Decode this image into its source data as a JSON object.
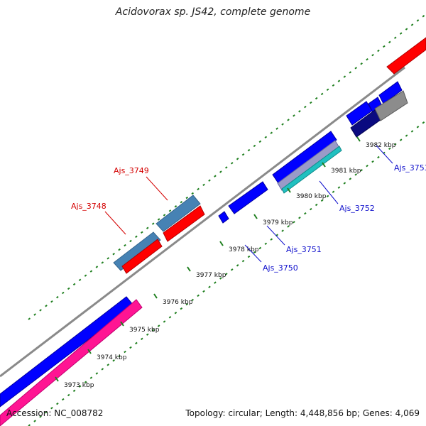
{
  "title": "Acidovorax sp. JS42, complete genome",
  "footer": {
    "accession": "Accession: NC_008782",
    "info": "Topology: circular; Length: 4,448,856 bp; Genes: 4,069"
  },
  "colors": {
    "backbone": "#8a8a8a",
    "tick_mark": "#1f7f1f",
    "label_forward": "#d40000",
    "label_reverse": "#1010cc"
  },
  "ticks": [
    {
      "label": "3973 kbp"
    },
    {
      "label": "3974 kbp"
    },
    {
      "label": "3975 kbp"
    },
    {
      "label": "3976 kbp"
    },
    {
      "label": "3977 kbp"
    },
    {
      "label": "3978 kbp"
    },
    {
      "label": "3979 kbp"
    },
    {
      "label": "3980 kbp"
    },
    {
      "label": "3981 kbp"
    },
    {
      "label": "3982 kbp"
    }
  ],
  "genes": [
    {
      "label": "Ajs_3748",
      "color": "#ff0000"
    },
    {
      "label": "Ajs_3749",
      "color": "#ff0000"
    },
    {
      "label": "Ajs_3750",
      "color": "#0000ff"
    },
    {
      "label": "Ajs_3751",
      "color": "#0000ff"
    },
    {
      "label": "Ajs_3752",
      "color": "#0000ff"
    },
    {
      "label": "Ajs_3753",
      "color": "#0000ff"
    }
  ]
}
